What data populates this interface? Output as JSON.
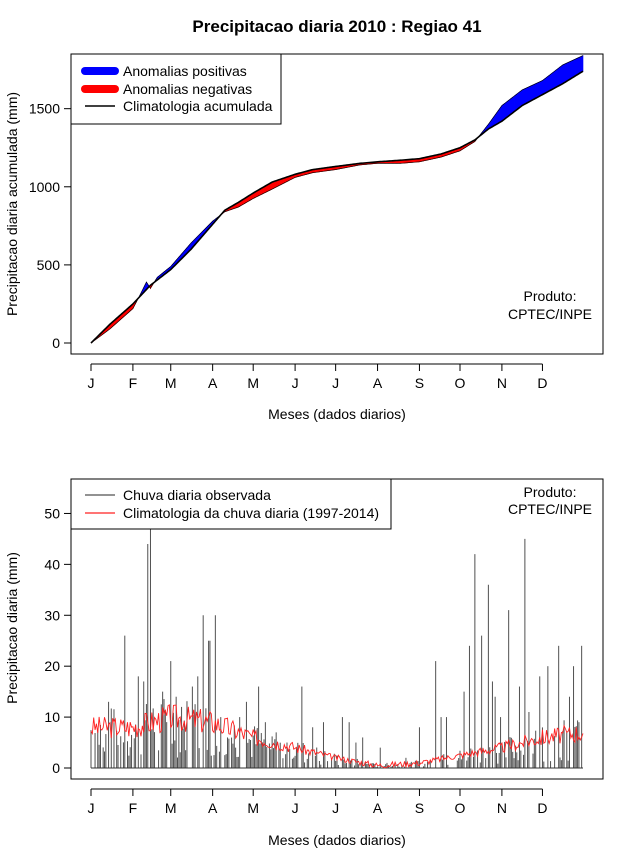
{
  "figure": {
    "title": "Precipitacao diaria 2010 : Regiao 41",
    "watermark_top": [
      "Produto:",
      "CPTEC/INPE"
    ],
    "watermark_bottom": [
      "Produto:",
      "CPTEC/INPE"
    ]
  },
  "colors": {
    "positive": "#0000ff",
    "negative": "#ff0000",
    "climatology_line": "#000000",
    "observed": "#505050",
    "clim_daily": "#ff2020"
  },
  "chart_data": [
    {
      "type": "area",
      "title": "Precipitacao diaria 2010 : Regiao 41",
      "xlabel": "Meses (dados diarios)",
      "ylabel": "Precipitacao diaria acumulada (mm)",
      "xlim": [
        1,
        365
      ],
      "ylim": [
        0,
        1850
      ],
      "x_tick_labels": [
        "J",
        "F",
        "M",
        "A",
        "M",
        "J",
        "J",
        "A",
        "S",
        "O",
        "N",
        "D"
      ],
      "x_tick_days": [
        1,
        32,
        60,
        91,
        121,
        152,
        182,
        213,
        244,
        274,
        305,
        335
      ],
      "y_ticks": [
        0,
        500,
        1000,
        1500
      ],
      "legend": [
        "Anomalias positivas",
        "Anomalias negativas",
        "Climatologia acumulada"
      ],
      "climatology_cumulative": {
        "x": [
          1,
          15,
          32,
          45,
          60,
          75,
          91,
          100,
          110,
          121,
          135,
          152,
          165,
          182,
          200,
          213,
          230,
          244,
          260,
          274,
          285,
          295,
          305,
          320,
          335,
          350,
          365
        ],
        "y": [
          0,
          120,
          250,
          370,
          470,
          600,
          760,
          850,
          900,
          960,
          1030,
          1080,
          1110,
          1130,
          1150,
          1160,
          1170,
          1180,
          1210,
          1250,
          1300,
          1370,
          1420,
          1520,
          1590,
          1660,
          1740
        ]
      },
      "observed_cumulative": {
        "x": [
          1,
          15,
          32,
          38,
          42,
          45,
          50,
          60,
          75,
          91,
          100,
          110,
          121,
          135,
          152,
          165,
          182,
          200,
          213,
          230,
          244,
          260,
          274,
          285,
          295,
          305,
          320,
          335,
          350,
          365
        ],
        "y": [
          0,
          90,
          220,
          320,
          390,
          350,
          420,
          490,
          640,
          780,
          840,
          870,
          925,
          985,
          1060,
          1090,
          1110,
          1140,
          1150,
          1150,
          1160,
          1190,
          1230,
          1290,
          1400,
          1520,
          1620,
          1680,
          1780,
          1840
        ]
      }
    },
    {
      "type": "bar",
      "xlabel": "Meses (dados diarios)",
      "ylabel": "Precipitacao diaria (mm)",
      "xlim": [
        1,
        365
      ],
      "ylim": [
        0,
        55
      ],
      "x_tick_labels": [
        "J",
        "F",
        "M",
        "A",
        "M",
        "J",
        "J",
        "A",
        "S",
        "O",
        "N",
        "D"
      ],
      "x_tick_days": [
        1,
        32,
        60,
        91,
        121,
        152,
        182,
        213,
        244,
        274,
        305,
        335
      ],
      "y_ticks": [
        0,
        10,
        20,
        30,
        40,
        50
      ],
      "legend": [
        "Chuva diaria observada",
        "Climatologia da chuva diaria (1997-2014)"
      ],
      "observed_daily_peaks": {
        "days": [
          14,
          26,
          36,
          40,
          43,
          45,
          54,
          60,
          64,
          68,
          76,
          80,
          84,
          88,
          89,
          93,
          97,
          102,
          111,
          116,
          125,
          130,
          138,
          146,
          157,
          165,
          173,
          187,
          192,
          197,
          202,
          215,
          220,
          234,
          244,
          256,
          260,
          264,
          277,
          281,
          285,
          290,
          295,
          298,
          300,
          304,
          310,
          318,
          322,
          325,
          333,
          339,
          347,
          355,
          358,
          362,
          364
        ],
        "values": [
          13,
          26,
          18,
          17,
          44,
          47,
          15,
          21,
          14,
          12,
          16,
          18,
          30,
          25,
          25,
          30,
          10,
          6,
          10,
          13,
          16,
          9,
          7,
          5,
          16,
          8,
          9,
          10,
          9,
          5,
          6,
          4,
          1,
          2,
          8,
          21,
          10,
          10,
          15,
          24,
          42,
          26,
          36,
          17,
          14,
          10,
          31,
          16,
          45,
          11,
          18,
          20,
          24,
          14,
          20,
          9,
          24
        ]
      },
      "climatology_daily_anchor": {
        "x": [
          1,
          32,
          60,
          91,
          121,
          152,
          182,
          213,
          244,
          274,
          305,
          335,
          365
        ],
        "y": [
          8,
          8,
          10,
          9,
          6,
          4,
          2,
          0.5,
          1,
          2.5,
          4,
          6,
          7
        ]
      }
    }
  ]
}
